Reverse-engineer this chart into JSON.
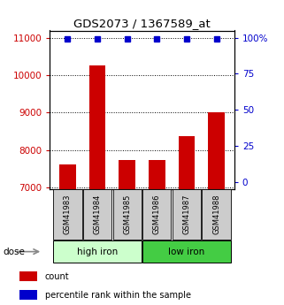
{
  "title": "GDS2073 / 1367589_at",
  "categories": [
    "GSM41983",
    "GSM41984",
    "GSM41985",
    "GSM41986",
    "GSM41987",
    "GSM41988"
  ],
  "bar_values": [
    7620,
    10260,
    7720,
    7720,
    8360,
    9010
  ],
  "bar_color": "#cc0000",
  "percentile_values": [
    99,
    99,
    99,
    99,
    99,
    99
  ],
  "percentile_color": "#0000cc",
  "ylim_left": [
    6950,
    11200
  ],
  "ylim_right": [
    -5,
    105
  ],
  "yticks_left": [
    7000,
    8000,
    9000,
    10000,
    11000
  ],
  "yticks_right": [
    0,
    25,
    50,
    75,
    100
  ],
  "yticklabels_right": [
    "0",
    "25",
    "50",
    "75",
    "100%"
  ],
  "left_tick_color": "#cc0000",
  "right_tick_color": "#0000cc",
  "group1_label": "high iron",
  "group2_label": "low iron",
  "group1_color": "#ccffcc",
  "group2_color": "#44cc44",
  "dose_label": "dose",
  "legend_items": [
    "count",
    "percentile rank within the sample"
  ],
  "legend_colors": [
    "#cc0000",
    "#0000cc"
  ],
  "bar_width": 0.55,
  "xlabel_box_color": "#cccccc"
}
